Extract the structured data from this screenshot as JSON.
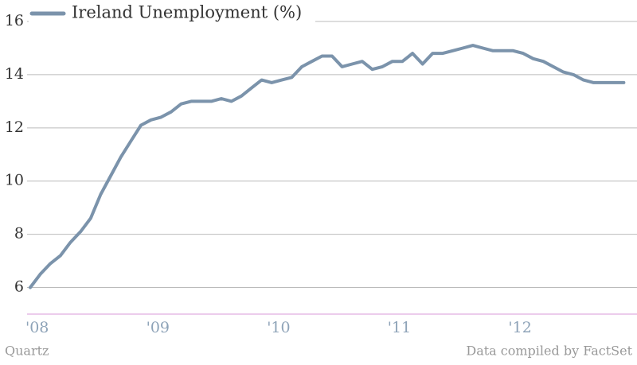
{
  "chart_data": {
    "type": "line",
    "categories": [
      "'08",
      null,
      null,
      null,
      null,
      null,
      null,
      null,
      null,
      null,
      null,
      null,
      "'09",
      null,
      null,
      null,
      null,
      null,
      null,
      null,
      null,
      null,
      null,
      null,
      "'10",
      null,
      null,
      null,
      null,
      null,
      null,
      null,
      null,
      null,
      null,
      null,
      "'11",
      null,
      null,
      null,
      null,
      null,
      null,
      null,
      null,
      null,
      null,
      null,
      "'12",
      null,
      null,
      null,
      null,
      null,
      null,
      null,
      null,
      null,
      null,
      null
    ],
    "series": [
      {
        "name": "Ireland Unemployment (%)",
        "color": "#7b93ab",
        "values": [
          6.0,
          6.5,
          6.9,
          7.2,
          7.7,
          8.1,
          8.6,
          9.5,
          10.2,
          10.9,
          11.5,
          12.1,
          12.3,
          12.4,
          12.6,
          12.9,
          13.0,
          13.0,
          13.0,
          13.1,
          13.0,
          13.2,
          13.5,
          13.8,
          13.7,
          13.8,
          13.9,
          14.3,
          14.5,
          14.7,
          14.7,
          14.3,
          14.4,
          14.5,
          14.2,
          14.3,
          14.5,
          14.5,
          14.8,
          14.4,
          14.8,
          14.8,
          14.9,
          15.0,
          15.1,
          15.0,
          14.9,
          14.9,
          14.9,
          14.8,
          14.6,
          14.5,
          14.3,
          14.1,
          14.0,
          13.8,
          13.7,
          13.7,
          13.7,
          13.7
        ]
      }
    ],
    "ylim": [
      5,
      16
    ],
    "yticks": [
      6,
      8,
      10,
      12,
      14,
      16
    ],
    "grid": true,
    "legend": "top-left",
    "source_left": "Quartz",
    "source_right": "Data compiled by FactSet"
  }
}
